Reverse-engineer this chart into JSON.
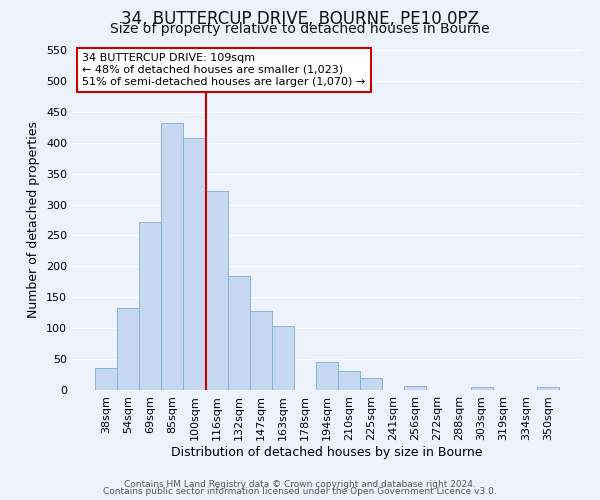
{
  "title": "34, BUTTERCUP DRIVE, BOURNE, PE10 0PZ",
  "subtitle": "Size of property relative to detached houses in Bourne",
  "xlabel": "Distribution of detached houses by size in Bourne",
  "ylabel": "Number of detached properties",
  "bar_labels": [
    "38sqm",
    "54sqm",
    "69sqm",
    "85sqm",
    "100sqm",
    "116sqm",
    "132sqm",
    "147sqm",
    "163sqm",
    "178sqm",
    "194sqm",
    "210sqm",
    "225sqm",
    "241sqm",
    "256sqm",
    "272sqm",
    "288sqm",
    "303sqm",
    "319sqm",
    "334sqm",
    "350sqm"
  ],
  "bar_values": [
    35,
    133,
    272,
    432,
    407,
    322,
    184,
    128,
    103,
    0,
    46,
    30,
    20,
    0,
    7,
    0,
    0,
    5,
    0,
    0,
    5
  ],
  "bar_color": "#c5d8f0",
  "bar_edge_color": "#7bafd4",
  "vline_x_idx": 5,
  "vline_color": "#cc0000",
  "annotation_title": "34 BUTTERCUP DRIVE: 109sqm",
  "annotation_line1": "← 48% of detached houses are smaller (1,023)",
  "annotation_line2": "51% of semi-detached houses are larger (1,070) →",
  "annotation_box_color": "#ffffff",
  "annotation_box_edge": "#cc0000",
  "ylim": [
    0,
    550
  ],
  "yticks": [
    0,
    50,
    100,
    150,
    200,
    250,
    300,
    350,
    400,
    450,
    500,
    550
  ],
  "footer1": "Contains HM Land Registry data © Crown copyright and database right 2024.",
  "footer2": "Contains public sector information licensed under the Open Government Licence v3.0.",
  "background_color": "#eef2fb",
  "grid_color": "#ffffff",
  "title_fontsize": 12,
  "subtitle_fontsize": 10,
  "tick_fontsize": 8,
  "ylabel_fontsize": 9,
  "xlabel_fontsize": 9,
  "annotation_fontsize": 8,
  "footer_fontsize": 6.5
}
